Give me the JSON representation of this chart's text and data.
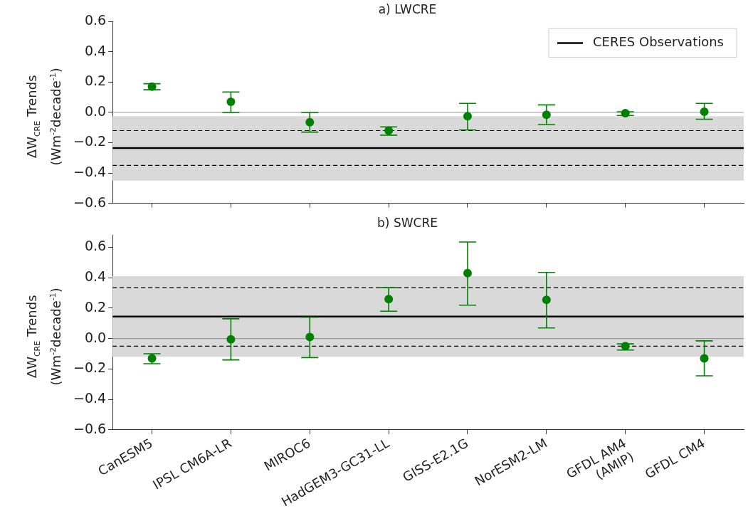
{
  "chart_data": [
    {
      "type": "scatter",
      "title": "a) LWCRE",
      "ylabel": "ΔW$_{CRE}$ Trends (Wm$^{-2}$decade$^{-1}$)",
      "categories": [
        null,
        null,
        null,
        null,
        null,
        null,
        null,
        null
      ],
      "series": [
        {
          "color": "#008000",
          "values": [
            0.17,
            0.07,
            -0.065,
            -0.12,
            -0.025,
            -0.015,
            -0.005,
            0.005
          ],
          "errors": [
            [
              0.15,
              0.19
            ],
            [
              0.0,
              0.135
            ],
            [
              -0.13,
              0.0
            ],
            [
              -0.15,
              -0.095
            ],
            [
              -0.115,
              0.06
            ],
            [
              -0.08,
              0.05
            ],
            [
              -0.02,
              0.005
            ],
            [
              -0.045,
              0.06
            ]
          ]
        }
      ],
      "ylim": [
        -0.6,
        0.6
      ],
      "yticks": [
        {
          "value": -0.6,
          "label": "−0.6"
        },
        {
          "value": -0.4,
          "label": "−0.4"
        },
        {
          "value": -0.2,
          "label": "−0.2"
        },
        {
          "value": 0,
          "label": "0.0"
        },
        {
          "value": 0.2,
          "label": "0.2"
        },
        {
          "value": 0.4,
          "label": "0.4"
        },
        {
          "value": 0.6,
          "label": "0.6"
        }
      ],
      "bands": [
        {
          "axis": "y",
          "from": -0.45,
          "to": -0.025,
          "color": "#d9d9d9"
        }
      ],
      "ref_lines": [
        {
          "axis": "y",
          "value": 0,
          "color": "#999999",
          "line_style": "solid"
        },
        {
          "axis": "y",
          "value": -0.12,
          "color": "#000000",
          "line_style": "dashed"
        },
        {
          "axis": "y",
          "value": -0.35,
          "color": "#000000",
          "line_style": "dashed"
        },
        {
          "axis": "y",
          "value": -0.235,
          "color": "#000000",
          "line_style": "solid",
          "label": "CERES Observations"
        }
      ],
      "legend": "top right",
      "marker": "circle",
      "grid": false,
      "tick_labels": "y"
    },
    {
      "type": "scatter",
      "title": "b) SWCRE",
      "ylabel": "ΔW$_{CRE}$ Trends (Wm$^{-2}$decade$^{-1}$)",
      "categories": [
        "CanESM5",
        "IPSL CM6A-LR",
        "MIROC6",
        "HadGEM3-GC31-LL",
        "GISS-E2.1G",
        "NorESM2-LM",
        "GFDL AM4\n(AMIP)",
        "GFDL CM4"
      ],
      "series": [
        {
          "color": "#008000",
          "values": [
            -0.13,
            -0.005,
            0.01,
            0.26,
            0.43,
            0.255,
            -0.05,
            -0.13
          ],
          "errors": [
            [
              -0.165,
              -0.1
            ],
            [
              -0.14,
              0.13
            ],
            [
              -0.125,
              0.14
            ],
            [
              0.18,
              0.335
            ],
            [
              0.22,
              0.635
            ],
            [
              0.07,
              0.435
            ],
            [
              -0.075,
              -0.035
            ],
            [
              -0.245,
              -0.015
            ]
          ]
        }
      ],
      "ylim": [
        -0.6,
        0.68
      ],
      "yticks": [
        {
          "value": -0.6,
          "label": "−0.6"
        },
        {
          "value": -0.4,
          "label": "−0.4"
        },
        {
          "value": -0.2,
          "label": "−0.2"
        },
        {
          "value": 0,
          "label": "0.0"
        },
        {
          "value": 0.2,
          "label": "0.2"
        },
        {
          "value": 0.4,
          "label": "0.4"
        },
        {
          "value": 0.6,
          "label": "0.6"
        }
      ],
      "bands": [
        {
          "axis": "y",
          "from": -0.12,
          "to": 0.41,
          "color": "#d9d9d9"
        }
      ],
      "ref_lines": [
        {
          "axis": "y",
          "value": 0,
          "color": "#999999",
          "line_style": "solid"
        },
        {
          "axis": "y",
          "value": 0.335,
          "color": "#000000",
          "line_style": "dashed"
        },
        {
          "axis": "y",
          "value": -0.05,
          "color": "#000000",
          "line_style": "dashed"
        },
        {
          "axis": "y",
          "value": 0.145,
          "color": "#000000",
          "line_style": "solid"
        }
      ],
      "marker": "circle",
      "grid": false
    }
  ]
}
